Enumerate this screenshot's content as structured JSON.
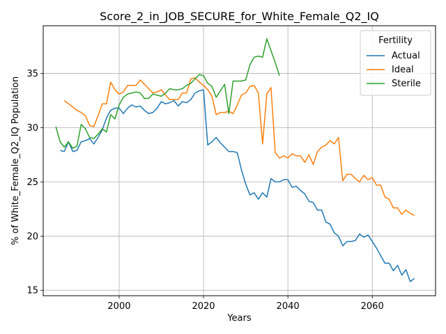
{
  "chart_data": {
    "type": "line",
    "title": "Score_2_in_JOB_SECURE_for_White_Female_Q2_IQ",
    "xlabel": "Years",
    "ylabel": "% of White_Female_Q2_IQ Population",
    "xlim": [
      1982,
      2075
    ],
    "ylim": [
      14.5,
      39.4
    ],
    "x_ticks": [
      2000,
      2020,
      2040,
      2060
    ],
    "y_ticks": [
      15,
      20,
      25,
      30,
      35
    ],
    "grid": true,
    "legend": {
      "title": "Fertility",
      "position": "top-right"
    },
    "series": [
      {
        "name": "Actual",
        "color": "#1f77b4",
        "x": [
          1986,
          1987,
          1988,
          1989,
          1990,
          1991,
          1992,
          1993,
          1994,
          1995,
          1996,
          1997,
          1998,
          1999,
          2000,
          2001,
          2002,
          2003,
          2004,
          2005,
          2006,
          2007,
          2008,
          2009,
          2010,
          2011,
          2012,
          2013,
          2014,
          2015,
          2016,
          2017,
          2018,
          2019,
          2020,
          2021,
          2022,
          2023,
          2024,
          2025,
          2026,
          2027,
          2028,
          2029,
          2030,
          2031,
          2032,
          2033,
          2034,
          2035,
          2036,
          2037,
          2038,
          2039,
          2040,
          2041,
          2042,
          2043,
          2044,
          2045,
          2046,
          2047,
          2048,
          2049,
          2050,
          2051,
          2052,
          2053,
          2054,
          2055,
          2056,
          2057,
          2058,
          2059,
          2060,
          2061,
          2062,
          2063,
          2064,
          2065,
          2066,
          2067,
          2068,
          2069,
          2070
        ],
        "y": [
          27.9,
          27.8,
          28.7,
          27.8,
          27.9,
          28.7,
          28.8,
          29.0,
          28.5,
          29.1,
          29.8,
          30.9,
          31.6,
          31.8,
          31.8,
          31.3,
          31.8,
          32.1,
          31.9,
          32.0,
          31.6,
          31.3,
          31.4,
          31.8,
          32.4,
          32.2,
          32.3,
          32.5,
          32.0,
          32.4,
          32.3,
          32.6,
          33.2,
          33.4,
          33.5,
          28.4,
          28.7,
          29.1,
          28.6,
          28.2,
          27.8,
          27.8,
          27.7,
          26.1,
          24.8,
          23.8,
          24.0,
          23.4,
          24.0,
          23.6,
          25.3,
          25.0,
          25.0,
          25.2,
          25.2,
          24.5,
          24.6,
          24.2,
          23.9,
          23.2,
          23.1,
          22.4,
          22.4,
          21.3,
          21.1,
          20.3,
          20.0,
          19.1,
          19.5,
          19.5,
          19.6,
          20.2,
          19.9,
          20.1,
          19.5,
          18.9,
          18.2,
          17.5,
          17.5,
          16.8,
          17.3,
          16.4,
          16.9,
          15.8,
          16.1
        ]
      },
      {
        "name": "Ideal",
        "color": "#ff7f0e",
        "x": [
          1987,
          1988,
          1989,
          1990,
          1991,
          1992,
          1993,
          1994,
          1995,
          1996,
          1997,
          1998,
          1999,
          2000,
          2001,
          2002,
          2003,
          2004,
          2005,
          2006,
          2007,
          2008,
          2009,
          2010,
          2011,
          2012,
          2013,
          2014,
          2015,
          2016,
          2017,
          2018,
          2019,
          2020,
          2021,
          2022,
          2023,
          2024,
          2025,
          2026,
          2027,
          2028,
          2029,
          2030,
          2031,
          2032,
          2033,
          2034,
          2035,
          2036,
          2037,
          2038,
          2039,
          2040,
          2041,
          2042,
          2043,
          2044,
          2045,
          2046,
          2047,
          2048,
          2049,
          2050,
          2051,
          2052,
          2053,
          2054,
          2055,
          2056,
          2057,
          2058,
          2059,
          2060,
          2061,
          2062,
          2063,
          2064,
          2065,
          2066,
          2067,
          2068,
          2069,
          2070
        ],
        "y": [
          32.5,
          32.2,
          31.9,
          31.6,
          31.4,
          31.1,
          30.2,
          30.1,
          31.1,
          32.2,
          32.2,
          34.2,
          33.5,
          33.1,
          33.3,
          33.9,
          33.9,
          33.9,
          34.4,
          34.0,
          33.6,
          33.2,
          33.3,
          33.5,
          33.0,
          32.6,
          32.6,
          32.6,
          33.2,
          33.2,
          34.5,
          34.6,
          34.2,
          33.9,
          33.5,
          32.9,
          31.2,
          31.4,
          31.4,
          31.5,
          31.3,
          32.1,
          33.0,
          33.2,
          33.8,
          33.9,
          33.2,
          28.5,
          33.1,
          33.7,
          27.7,
          27.2,
          27.4,
          27.2,
          27.6,
          27.4,
          27.4,
          26.8,
          27.5,
          26.6,
          27.8,
          28.2,
          28.4,
          28.8,
          28.5,
          29.1,
          25.1,
          25.7,
          25.7,
          25.3,
          25.0,
          25.6,
          25.2,
          25.4,
          24.7,
          24.7,
          23.6,
          23.4,
          22.6,
          22.6,
          22.0,
          22.4,
          22.1,
          21.9
        ]
      },
      {
        "name": "Sterile",
        "color": "#2ca02c",
        "x": [
          1985,
          1986,
          1987,
          1988,
          1989,
          1990,
          1991,
          1992,
          1993,
          1994,
          1995,
          1996,
          1997,
          1998,
          1999,
          2000,
          2001,
          2002,
          2003,
          2004,
          2005,
          2006,
          2007,
          2008,
          2009,
          2010,
          2011,
          2012,
          2013,
          2014,
          2015,
          2016,
          2017,
          2018,
          2019,
          2020,
          2021,
          2022,
          2023,
          2024,
          2025,
          2026,
          2027,
          2028,
          2029,
          2030,
          2031,
          2032,
          2033,
          2034,
          2035,
          2036,
          2037,
          2038
        ],
        "y": [
          30.1,
          28.7,
          28.2,
          28.7,
          28.1,
          28.3,
          30.3,
          29.9,
          29.1,
          29.0,
          29.4,
          29.9,
          29.6,
          31.2,
          30.8,
          32.1,
          32.8,
          33.1,
          33.2,
          33.3,
          33.2,
          32.7,
          32.7,
          33.1,
          33.0,
          32.9,
          33.2,
          33.6,
          33.5,
          33.5,
          33.6,
          33.9,
          34.1,
          34.5,
          34.9,
          34.8,
          34.1,
          33.8,
          32.8,
          33.4,
          34.0,
          31.3,
          34.3,
          34.3,
          34.3,
          34.4,
          35.8,
          36.5,
          36.6,
          36.5,
          38.2,
          37.1,
          36.0,
          34.8
        ]
      }
    ]
  }
}
